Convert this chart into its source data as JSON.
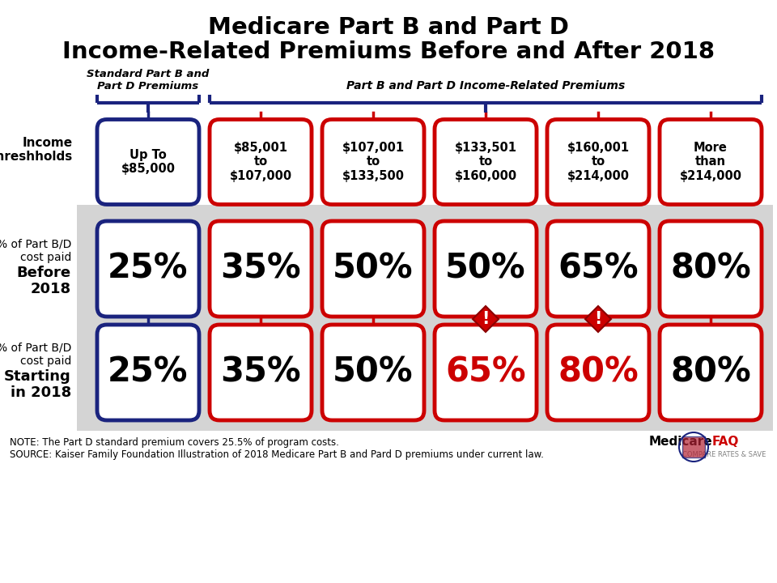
{
  "title_line1": "Medicare Part B and Part D",
  "title_line2": "Income-Related Premiums Before and After 2018",
  "bg_color": "#ffffff",
  "white": "#ffffff",
  "dark_blue": "#1a237e",
  "red": "#cc0000",
  "gray_bg": "#d4d4d4",
  "label_standard": "Standard Part B and\nPart D Premiums",
  "label_income_related": "Part B and Part D Income-Related Premiums",
  "row_label_income": "Income\nThreshholds",
  "row_label_before_top": "% of Part B/D\ncost paid",
  "row_label_before_bold": "Before\n2018",
  "row_label_after_top": "% of Part B/D\ncost paid",
  "row_label_after_bold": "Starting\nin 2018",
  "col_headers": [
    "Up To\n$85,000",
    "$85,001\nto\n$107,000",
    "$107,001\nto\n$133,500",
    "$133,501\nto\n$160,000",
    "$160,001\nto\n$214,000",
    "More\nthan\n$214,000"
  ],
  "before_values": [
    "25%",
    "35%",
    "50%",
    "50%",
    "65%",
    "80%"
  ],
  "after_values": [
    "25%",
    "35%",
    "50%",
    "65%",
    "80%",
    "80%"
  ],
  "changed_cols": [
    3,
    4
  ],
  "note_line1": "NOTE: The Part D standard premium covers 25.5% of program costs.",
  "note_line2": "SOURCE: Kaiser Family Foundation Illustration of 2018 Medicare Part B and Pard D premiums under current law."
}
